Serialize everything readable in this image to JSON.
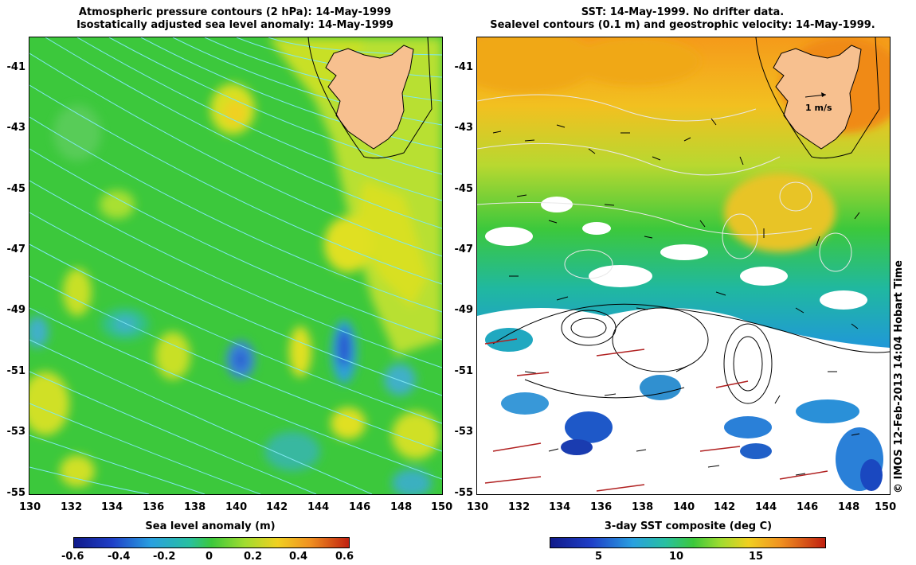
{
  "left_map": {
    "title_line1": "Atmospheric pressure contours (2 hPa): 14-May-1999",
    "title_line2": "Isostatically adjusted sea level anomaly: 14-May-1999",
    "y_ticks": [
      "-41",
      "-43",
      "-45",
      "-47",
      "-49",
      "-51",
      "-53",
      "-55"
    ],
    "x_ticks": [
      "130",
      "132",
      "134",
      "136",
      "138",
      "140",
      "142",
      "144",
      "146",
      "148",
      "150"
    ],
    "colorbar_title": "Sea level anomaly (m)",
    "colorbar_ticks": [
      "-0.6",
      "-0.4",
      "-0.2",
      "0",
      "0.2",
      "0.4",
      "0.6"
    ]
  },
  "right_map": {
    "title_line1": "SST: 14-May-1999. No drifter data.",
    "title_line2": "Sealevel contours (0.1 m) and geostrophic velocity: 14-May-1999.",
    "y_ticks": [
      "-41",
      "-43",
      "-45",
      "-47",
      "-49",
      "-51",
      "-53",
      "-55"
    ],
    "x_ticks": [
      "130",
      "132",
      "134",
      "136",
      "138",
      "140",
      "142",
      "144",
      "146",
      "148",
      "150"
    ],
    "velocity_scale_label": "1 m/s",
    "colorbar_title": "3-day SST composite (deg C)",
    "colorbar_ticks": [
      "5",
      "10",
      "15"
    ]
  },
  "credit": "© IMOS 12-Feb-2013 14:04 Hobart Time",
  "colors": {
    "land": "#f7c08f",
    "pressure_contour": "#7fe8f0",
    "sla_base": "#3cc83c",
    "sst_warm": "#f5b01a",
    "sst_cold": "#1e7fd8"
  }
}
